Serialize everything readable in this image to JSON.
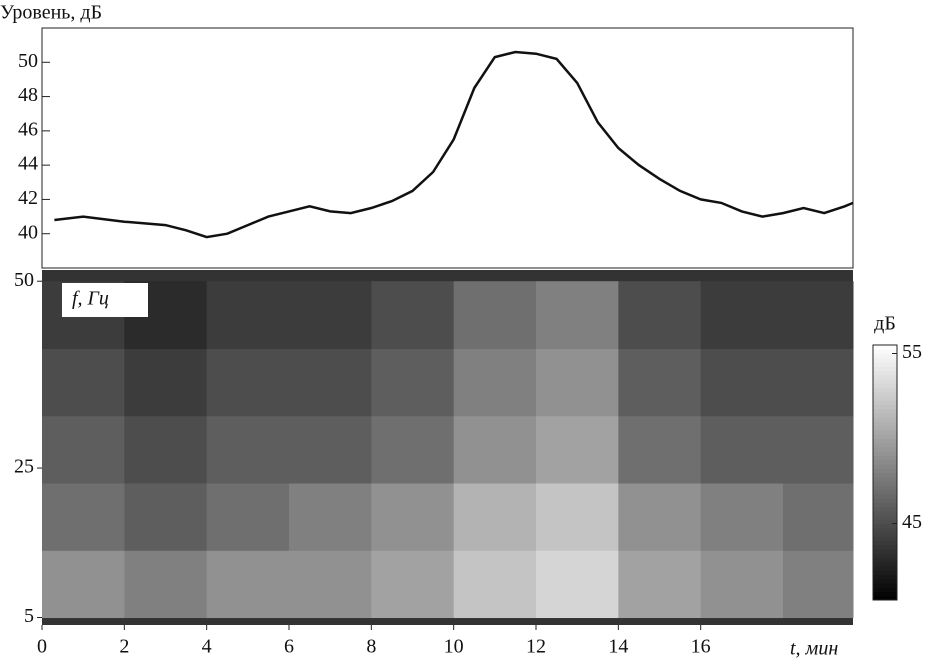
{
  "chart_data": [
    {
      "type": "line",
      "ylabel": "Уровень, дБ",
      "color": "#111111",
      "x": [
        0.3,
        1,
        2,
        3,
        3.5,
        4,
        4.5,
        5,
        5.5,
        6,
        6.5,
        7,
        7.5,
        8,
        8.5,
        9,
        9.5,
        10,
        10.5,
        11,
        11.5,
        12,
        12.5,
        13,
        13.5,
        14,
        14.5,
        15,
        15.5,
        16,
        16.5,
        17,
        17.5,
        18,
        18.5,
        19,
        19.5,
        19.7
      ],
      "values": [
        40.8,
        41,
        40.7,
        40.5,
        40.2,
        39.8,
        40,
        40.5,
        41,
        41.3,
        41.6,
        41.3,
        41.2,
        41.5,
        41.9,
        42.5,
        43.6,
        45.5,
        48.5,
        50.3,
        50.6,
        50.5,
        50.2,
        48.8,
        46.5,
        45,
        44,
        43.2,
        42.5,
        42,
        41.8,
        41.3,
        41,
        41.2,
        41.5,
        41.2,
        41.6,
        41.8
      ],
      "xlim": [
        0,
        19.7
      ],
      "ylim": [
        38,
        52
      ],
      "yticks": [
        40,
        42,
        44,
        46,
        48,
        50
      ]
    },
    {
      "type": "heatmap",
      "ylabel": "f, Гц",
      "xlabel": "t, мин",
      "x_edges": [
        0,
        2,
        4,
        6,
        8,
        10,
        12,
        14,
        16,
        18,
        19.7
      ],
      "y_edges": [
        5,
        14,
        23,
        32,
        41,
        50
      ],
      "values": [
        [
          49,
          48,
          49,
          49,
          50,
          52,
          53,
          50,
          49,
          48
        ],
        [
          47,
          46,
          47,
          48,
          49,
          51,
          52,
          49,
          48,
          47
        ],
        [
          46,
          45,
          46,
          46,
          47,
          49,
          50,
          47,
          46,
          46
        ],
        [
          45,
          44,
          45,
          45,
          46,
          48,
          49,
          46,
          45,
          45
        ],
        [
          44,
          43,
          44,
          44,
          45,
          47,
          48,
          45,
          44,
          44
        ]
      ],
      "xlim": [
        0,
        19.7
      ],
      "ylim": [
        4,
        51.5
      ],
      "xticks": [
        0,
        2,
        4,
        6,
        8,
        10,
        12,
        14,
        16
      ],
      "yticks": [
        5,
        25,
        50
      ],
      "colorbar": {
        "label": "дБ",
        "clim": [
          40.5,
          55.5
        ],
        "ticks": [
          45,
          55
        ]
      }
    }
  ]
}
